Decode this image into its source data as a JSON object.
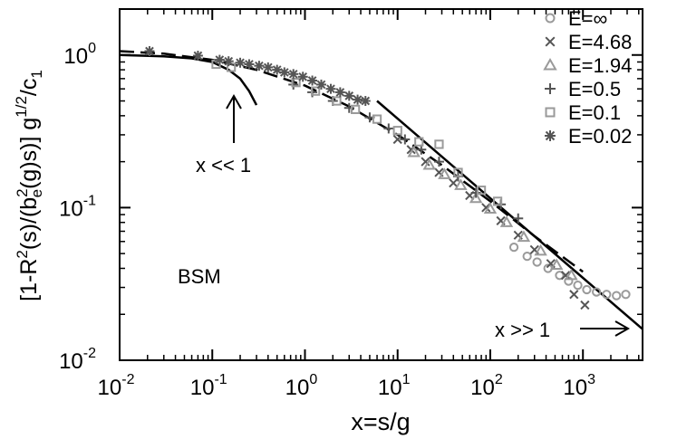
{
  "chart_data": {
    "type": "scatter",
    "xscale": "log",
    "yscale": "log",
    "xlim": [
      0.01,
      4400
    ],
    "ylim": [
      0.01,
      2.0
    ],
    "xlabel": "x=s/g",
    "ylabel": "[1-R²(s)/(b²e(g)s)] g^1/2/c1",
    "ylabel_parts": {
      "p1": "[1-R",
      "p1_sup": "2",
      "p2": "(s)/(b",
      "p2_sup": "2",
      "p2_sub": "e",
      "p3": "(g)s)] g",
      "p3_sup": "1/2",
      "p4": "/c",
      "p4_sub": "1"
    },
    "x_ticks": [
      {
        "value": 0.01,
        "base": "10",
        "exp": "-2"
      },
      {
        "value": 0.1,
        "base": "10",
        "exp": "-1"
      },
      {
        "value": 1,
        "base": "10",
        "exp": "0"
      },
      {
        "value": 10,
        "base": "10",
        "exp": "1"
      },
      {
        "value": 100,
        "base": "10",
        "exp": "2"
      },
      {
        "value": 1000,
        "base": "10",
        "exp": "3"
      }
    ],
    "y_ticks": [
      {
        "value": 0.01,
        "base": "10",
        "exp": "-2"
      },
      {
        "value": 0.1,
        "base": "10",
        "exp": "-1"
      },
      {
        "value": 1,
        "base": "10",
        "exp": "0"
      }
    ],
    "grid": false,
    "legend_position": "top-right",
    "annotations": {
      "bsm": "BSM",
      "small_x": "x << 1",
      "large_x": "x >> 1"
    },
    "series": [
      {
        "name": "E=∞",
        "marker": "circle",
        "color": "#9a9a9a",
        "points": [
          [
            180,
            0.055
          ],
          [
            250,
            0.048
          ],
          [
            320,
            0.044
          ],
          [
            420,
            0.04
          ],
          [
            560,
            0.036
          ],
          [
            700,
            0.033
          ],
          [
            880,
            0.031
          ],
          [
            1100,
            0.029
          ],
          [
            1400,
            0.028
          ],
          [
            1800,
            0.027
          ],
          [
            2300,
            0.0265
          ],
          [
            2900,
            0.027
          ]
        ]
      },
      {
        "name": "E=4.68",
        "marker": "x",
        "color": "#555555",
        "points": [
          [
            10,
            0.28
          ],
          [
            14,
            0.24
          ],
          [
            20,
            0.2
          ],
          [
            28,
            0.17
          ],
          [
            40,
            0.145
          ],
          [
            60,
            0.12
          ],
          [
            90,
            0.1
          ],
          [
            130,
            0.082
          ],
          [
            200,
            0.066
          ],
          [
            300,
            0.053
          ],
          [
            450,
            0.043
          ],
          [
            650,
            0.036
          ],
          [
            800,
            0.027
          ],
          [
            1050,
            0.023
          ]
        ]
      },
      {
        "name": "E=1.94",
        "marker": "triangle",
        "color": "#9a9a9a",
        "points": [
          [
            15,
            0.23
          ],
          [
            22,
            0.19
          ],
          [
            32,
            0.165
          ],
          [
            48,
            0.14
          ],
          [
            70,
            0.115
          ],
          [
            100,
            0.098
          ],
          [
            150,
            0.08
          ],
          [
            230,
            0.064
          ],
          [
            350,
            0.052
          ],
          [
            520,
            0.042
          ],
          [
            750,
            0.036
          ]
        ]
      },
      {
        "name": "E=0.5",
        "marker": "plus",
        "color": "#555555",
        "points": [
          [
            0.75,
            0.64
          ],
          [
            1.2,
            0.57
          ],
          [
            2,
            0.5
          ],
          [
            3,
            0.45
          ],
          [
            5,
            0.39
          ],
          [
            8,
            0.33
          ],
          [
            12,
            0.28
          ],
          [
            18,
            0.24
          ],
          [
            28,
            0.2
          ],
          [
            45,
            0.16
          ],
          [
            70,
            0.125
          ],
          [
            130,
            0.105
          ],
          [
            200,
            0.085
          ]
        ]
      },
      {
        "name": "E=0.1",
        "marker": "square",
        "color": "#9a9a9a",
        "points": [
          [
            0.11,
            0.87
          ],
          [
            0.16,
            0.83
          ],
          [
            0.8,
            0.66
          ],
          [
            1.3,
            0.58
          ],
          [
            2.2,
            0.5
          ],
          [
            3.5,
            0.44
          ],
          [
            6,
            0.38
          ],
          [
            10,
            0.32
          ],
          [
            17,
            0.27
          ],
          [
            28,
            0.26
          ],
          [
            45,
            0.17
          ],
          [
            80,
            0.13
          ],
          [
            120,
            0.11
          ]
        ]
      },
      {
        "name": "E=0.02",
        "marker": "star",
        "color": "#555555",
        "points": [
          [
            0.021,
            1.06
          ],
          [
            0.07,
            0.99
          ],
          [
            0.12,
            0.93
          ],
          [
            0.15,
            0.91
          ],
          [
            0.2,
            0.89
          ],
          [
            0.25,
            0.87
          ],
          [
            0.32,
            0.85
          ],
          [
            0.4,
            0.83
          ],
          [
            0.5,
            0.8
          ],
          [
            0.6,
            0.77
          ],
          [
            0.75,
            0.75
          ],
          [
            0.95,
            0.72
          ],
          [
            1.2,
            0.68
          ],
          [
            1.5,
            0.64
          ],
          [
            1.9,
            0.6
          ],
          [
            2.4,
            0.57
          ],
          [
            3,
            0.54
          ],
          [
            3.7,
            0.51
          ],
          [
            4.5,
            0.5
          ]
        ]
      }
    ],
    "curves": [
      {
        "name": "dashed",
        "style": "dashed",
        "points": [
          [
            0.01,
            1.06
          ],
          [
            0.03,
            1.02
          ],
          [
            0.1,
            0.93
          ],
          [
            0.3,
            0.8
          ],
          [
            1,
            0.63
          ],
          [
            3,
            0.46
          ],
          [
            10,
            0.3
          ],
          [
            30,
            0.19
          ],
          [
            100,
            0.11
          ],
          [
            300,
            0.065
          ],
          [
            1000,
            0.038
          ]
        ]
      },
      {
        "name": "small-x",
        "style": "solid",
        "points": [
          [
            0.01,
            1.0
          ],
          [
            0.03,
            0.98
          ],
          [
            0.06,
            0.95
          ],
          [
            0.1,
            0.9
          ],
          [
            0.15,
            0.8
          ],
          [
            0.2,
            0.7
          ],
          [
            0.25,
            0.58
          ],
          [
            0.3,
            0.47
          ]
        ]
      },
      {
        "name": "large-x",
        "style": "solid",
        "points": [
          [
            6,
            0.5
          ],
          [
            4400,
            0.016
          ]
        ]
      }
    ]
  }
}
